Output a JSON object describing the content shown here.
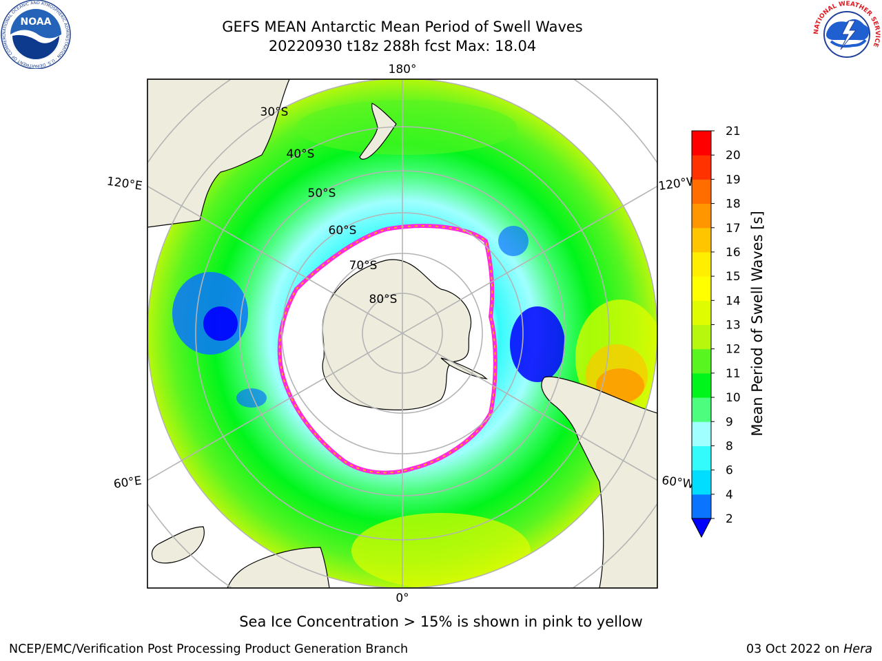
{
  "header": {
    "title_line1": "GEFS MEAN Antarctic Mean Period of Swell Waves",
    "title_line2": "20220930 t18z 288h fcst   Max: 18.04"
  },
  "logos": {
    "left": {
      "icon": "noaa-logo-icon",
      "text": "NOAA",
      "ring_text": "NATIONAL OCEANIC AND ATMOSPHERIC ADMINISTRATION · U.S. DEPARTMENT OF COMMERCE"
    },
    "right": {
      "icon": "nws-logo-icon",
      "ring_text": "NATIONAL WEATHER SERVICE"
    }
  },
  "map": {
    "projection": "south-polar-stereographic",
    "longitude_labels": {
      "top": "180°",
      "bottom": "0°",
      "upper_left": "120°E",
      "upper_right": "120°W",
      "lower_left": "60°E",
      "lower_right": "60°W"
    },
    "latitude_labels": [
      "30°S",
      "40°S",
      "50°S",
      "60°S",
      "70°S",
      "80°S"
    ],
    "colors": {
      "land": "#eeecdc",
      "coast": "#000000",
      "grid": "#b4b4b4",
      "ice_edge_pink": "#ff2adc",
      "ice_edge_yellow": "#ffb400",
      "ice_interior": "#ffffff"
    }
  },
  "colorbar": {
    "label": "Mean Period of Swell Waves [s]",
    "ticks": [
      "2",
      "4",
      "6",
      "8",
      "9",
      "10",
      "11",
      "12",
      "13",
      "14",
      "15",
      "16",
      "17",
      "18",
      "19",
      "20",
      "21"
    ],
    "colors": [
      "#0a74ff",
      "#00ddff",
      "#33fbfb",
      "#a0ffff",
      "#4cfd7e",
      "#00f51b",
      "#59f521",
      "#b6f70d",
      "#e0fc00",
      "#ffff00",
      "#ffee00",
      "#ffc600",
      "#ff9600",
      "#ff6d00",
      "#ff3200",
      "#ff0000"
    ],
    "under_color": "#0000ff"
  },
  "chart_data": {
    "type": "heatmap",
    "variable": "Mean Period of Swell Waves",
    "units": "s",
    "max_value": 18.04,
    "color_levels": [
      2,
      4,
      6,
      8,
      9,
      10,
      11,
      12,
      13,
      14,
      15,
      16,
      17,
      18,
      19,
      20,
      21
    ],
    "latitudes": [
      "30°S",
      "40°S",
      "50°S",
      "60°S",
      "70°S",
      "80°S"
    ],
    "longitudes": [
      "180°",
      "120°W",
      "60°W",
      "0°",
      "60°E",
      "120°E"
    ]
  },
  "note": "Sea Ice Concentration > 15% is shown in pink to yellow",
  "footer": {
    "left": "NCEP/EMC/Verification Post Processing Product Generation Branch",
    "right_date": "03 Oct 2022 on ",
    "right_host": "Hera"
  }
}
